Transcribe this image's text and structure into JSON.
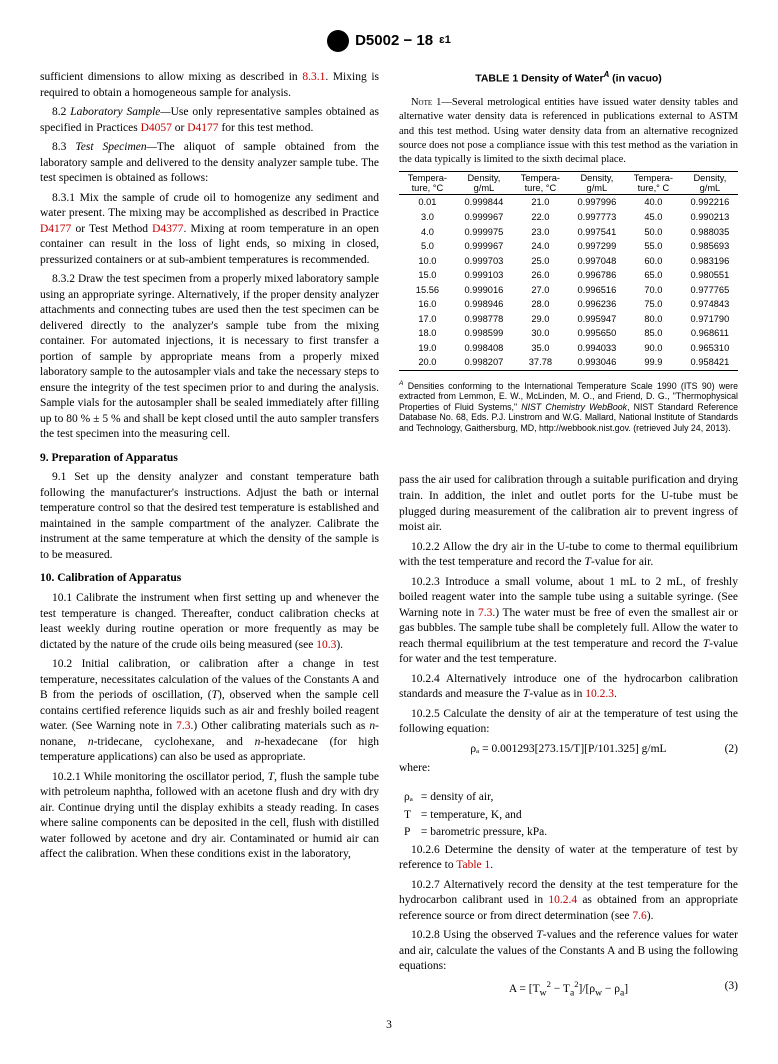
{
  "header": {
    "designation": "D5002 − 18",
    "eps": "ɛ1"
  },
  "text": {
    "p1": "sufficient dimensions to allow mixing as described in ",
    "r831": "8.3.1",
    "p1b": ". Mixing is required to obtain a homogeneous sample for analysis.",
    "p82a": "8.2 ",
    "p82i": "Laboratory Sample—",
    "p82b": "Use only representative samples obtained as specified in Practices ",
    "rD4057": "D4057",
    "p82c": " or ",
    "rD4177": "D4177",
    "p82d": " for this test method.",
    "p83a": "8.3 ",
    "p83i": "Test Specimen—",
    "p83b": "The aliquot of sample obtained from the laboratory sample and delivered to the density analyzer sample tube. The test specimen is obtained as follows:",
    "p831": "8.3.1 Mix the sample of crude oil to homogenize any sediment and water present. The mixing may be accomplished as described in Practice ",
    "p831b": " or Test Method ",
    "rD4377": "D4377",
    "p831c": ". Mixing at room temperature in an open container can result in the loss of light ends, so mixing in closed, pressurized containers or at sub-ambient temperatures is recommended.",
    "p832": "8.3.2 Draw the test specimen from a properly mixed laboratory sample using an appropriate syringe. Alternatively, if the proper density analyzer attachments and connecting tubes are used then the test specimen can be delivered directly to the analyzer's sample tube from the mixing container. For automated injections, it is necessary to first transfer a portion of sample by appropriate means from a properly mixed laboratory sample to the autosampler vials and take the necessary steps to ensure the integrity of the test specimen prior to and during the analysis. Sample vials for the autosampler shall be sealed immediately after filling up to 80 % ± 5 % and shall be kept closed until the auto sampler transfers the test specimen into the measuring cell.",
    "h9": "9. Preparation of Apparatus",
    "p91": "9.1 Set up the density analyzer and constant temperature bath following the manufacturer's instructions. Adjust the bath or internal temperature control so that the desired test temperature is established and maintained in the sample compartment of the analyzer. Calibrate the instrument at the same temperature at which the density of the sample is to be measured.",
    "h10": "10. Calibration of Apparatus",
    "p101": "10.1 Calibrate the instrument when first setting up and whenever the test temperature is changed. Thereafter, conduct calibration checks at least weekly during routine operation or more frequently as may be dictated by the nature of the crude oils being measured (see ",
    "r103": "10.3",
    "p101b": ").",
    "p102": "10.2 Initial calibration, or calibration after a change in test temperature, necessitates calculation of the values of the Constants A and B from the periods of oscillation, (",
    "Ti": "T",
    "p102b": "), observed when the sample cell contains certified reference liquids such as air and freshly boiled reagent water. (See Warning note in ",
    "r73": "7.3",
    "p102c": ".) Other calibrating materials such as ",
    "nnon": "n",
    "p102d": "-nonane, ",
    "p102e": "-tridecane, cyclohexane, and ",
    "p102f": "-hexadecane (for high temperature applications) can also be used as appropriate.",
    "p1021": "10.2.1 While monitoring the oscillator period, ",
    "p1021b": ", flush the sample tube with petroleum naphtha, followed with an acetone flush and dry with dry air. Continue drying until the display exhibits a steady reading. In cases where saline components can be deposited in the cell, flush with distilled water followed by acetone and dry air. Contaminated or humid air can affect the calibration. When these conditions exist in the laboratory,",
    "tableTitle": "TABLE 1 Density of Water",
    "tableSup": "A",
    "tableTitle2": " (in vacuo)",
    "note1": "Note 1—Several metrological entities have issued water density tables and alternative water density data is referenced in publications external to ASTM and this test method. Using water density data from an alternative recognized source does not pose a compliance issue with this test method as the variation in the data typically is limited to the sixth decimal place.",
    "th_temp": "Tempera-\nture, °C",
    "th_dens": "Density,\ng/mL",
    "th_temp2": "Tempera-\nture,° C",
    "rows": [
      [
        "0.01",
        "0.999844",
        "21.0",
        "0.997996",
        "40.0",
        "0.992216"
      ],
      [
        "3.0",
        "0.999967",
        "22.0",
        "0.997773",
        "45.0",
        "0.990213"
      ],
      [
        "4.0",
        "0.999975",
        "23.0",
        "0.997541",
        "50.0",
        "0.988035"
      ],
      [
        "5.0",
        "0.999967",
        "24.0",
        "0.997299",
        "55.0",
        "0.985693"
      ],
      [
        "10.0",
        "0.999703",
        "25.0",
        "0.997048",
        "60.0",
        "0.983196"
      ],
      [
        "15.0",
        "0.999103",
        "26.0",
        "0.996786",
        "65.0",
        "0.980551"
      ],
      [
        "15.56",
        "0.999016",
        "27.0",
        "0.996516",
        "70.0",
        "0.977765"
      ],
      [
        "16.0",
        "0.998946",
        "28.0",
        "0.996236",
        "75.0",
        "0.974843"
      ],
      [
        "17.0",
        "0.998778",
        "29.0",
        "0.995947",
        "80.0",
        "0.971790"
      ],
      [
        "18.0",
        "0.998599",
        "30.0",
        "0.995650",
        "85.0",
        "0.968611"
      ],
      [
        "19.0",
        "0.998408",
        "35.0",
        "0.994033",
        "90.0",
        "0.965310"
      ],
      [
        "20.0",
        "0.998207",
        "37.78",
        "0.993046",
        "99.9",
        "0.958421"
      ]
    ],
    "footnoteA": " Densities conforming to the International Temperature Scale 1990 (ITS 90) were extracted from Lemmon, E. W., McLinden, M. O., and Friend, D. G., \"Thermophysical Properties of Fluid Systems,\" NIST Chemistry WebBook, NIST Standard Reference Database No. 68, Eds. P.J. Linstrom and W.G. Mallard, National Institute of Standards and Technology, Gaithersburg, MD, http://webbook.nist.gov. (retrieved July 24, 2013).",
    "footAsup": "A",
    "footNist": "NIST Chemistry WebBook",
    "pcont": "pass the air used for calibration through a suitable purification and drying train. In addition, the inlet and outlet ports for the U-tube must be plugged during measurement of the calibration air to prevent ingress of moist air.",
    "p1022": "10.2.2 Allow the dry air in the U-tube to come to thermal equilibrium with the test temperature and record the ",
    "p1022b": "-value for air.",
    "p1023": "10.2.3 Introduce a small volume, about 1 mL to 2 mL, of freshly boiled reagent water into the sample tube using a suitable syringe. (See Warning note in ",
    "p1023b": ".) The water must be free of even the smallest air or gas bubbles. The sample tube shall be completely full. Allow the water to reach thermal equilibrium at the test temperature and record the ",
    "p1023c": "-value for water and the test temperature.",
    "p1024": "10.2.4 Alternatively introduce one of the hydrocarbon calibration standards and measure the ",
    "p1024b": "-value as in ",
    "r1023": "10.2.3",
    "p1024c": ".",
    "p1025": "10.2.5 Calculate the density of air at the temperature of test using the following equation:",
    "eq2": "ρₐ = 0.001293[273.15/T][P/101.325] g/mL",
    "eq2num": "(2)",
    "where": "where:",
    "wra": "ρₐ",
    "wrb": "= density of air,",
    "wT": "T",
    "wTb": "= temperature, K, and",
    "wP": "P",
    "wPb": "= barometric pressure, kPa.",
    "p1026": "10.2.6 Determine the density of water at the temperature of test by reference to ",
    "rTab1": "Table 1",
    "p1026b": ".",
    "p1027": "10.2.7 Alternatively record the density at the test temperature for the hydrocarbon calibrant used in ",
    "r1024": "10.2.4",
    "p1027b": " as obtained from an appropriate reference source or from direct determination (see ",
    "r76": "7.6",
    "p1027c": ").",
    "p1028": "10.2.8 Using the observed ",
    "p1028b": "-values and the reference values for water and air, calculate the values of the Constants A and B using the following equations:",
    "eq3": "A = [Tw² − Tₐ²]/[ρw − ρₐ]",
    "eq3num": "(3)",
    "pagenum": "3"
  }
}
